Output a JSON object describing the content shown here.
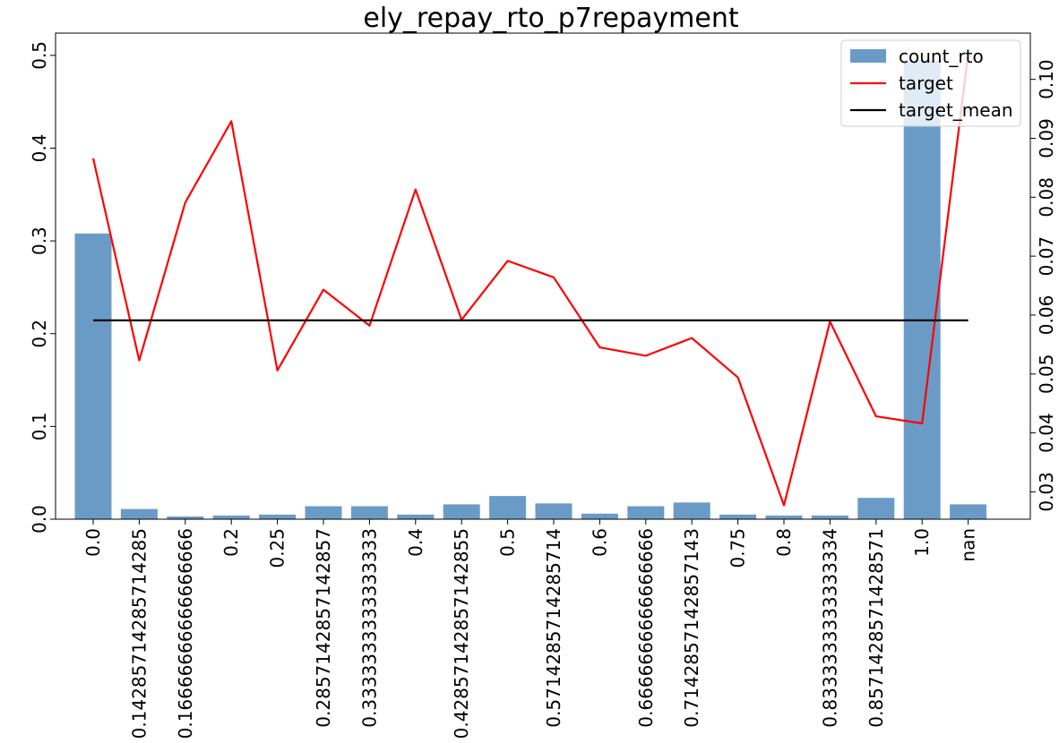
{
  "chart_data": {
    "type": "bar",
    "title": "ely_repay_rto_p7repayment",
    "categories": [
      "0.0",
      "0.14285714285714285",
      "0.16666666666666666",
      "0.2",
      "0.25",
      "0.2857142857142857",
      "0.3333333333333333",
      "0.4",
      "0.42857142857142855",
      "0.5",
      "0.5714285714285714",
      "0.6",
      "0.6666666666666666",
      "0.7142857142857143",
      "0.75",
      "0.8",
      "0.8333333333333334",
      "0.8571428571428571",
      "1.0",
      "nan"
    ],
    "series": [
      {
        "name": "count_rto",
        "type": "bar",
        "axis": "left",
        "color": "#6a9bc6",
        "values": [
          0.308,
          0.011,
          0.003,
          0.004,
          0.005,
          0.014,
          0.014,
          0.005,
          0.016,
          0.025,
          0.017,
          0.006,
          0.014,
          0.018,
          0.005,
          0.004,
          0.004,
          0.023,
          0.495,
          0.016
        ]
      },
      {
        "name": "target",
        "type": "line",
        "axis": "right",
        "color": "#ff0000",
        "values": [
          0.0866,
          0.0523,
          0.0791,
          0.0929,
          0.0506,
          0.0643,
          0.0582,
          0.0813,
          0.0592,
          0.0692,
          0.0664,
          0.0545,
          0.0531,
          0.0561,
          0.0494,
          0.0277,
          0.0589,
          0.0428,
          0.0416,
          0.1043
        ]
      },
      {
        "name": "target_mean",
        "type": "line",
        "axis": "right",
        "color": "#000000",
        "values": [
          0.0591,
          0.0591,
          0.0591,
          0.0591,
          0.0591,
          0.0591,
          0.0591,
          0.0591,
          0.0591,
          0.0591,
          0.0591,
          0.0591,
          0.0591,
          0.0591,
          0.0591,
          0.0591,
          0.0591,
          0.0591,
          0.0591,
          0.0591
        ]
      }
    ],
    "y_left": {
      "ylim": [
        0,
        0.524
      ],
      "ticks": [
        0.0,
        0.1,
        0.2,
        0.3,
        0.4,
        0.5
      ],
      "tick_labels": [
        "0.0",
        "0.1",
        "0.2",
        "0.3",
        "0.4",
        "0.5"
      ]
    },
    "y_right": {
      "ylim": [
        0.02535,
        0.10785
      ],
      "ticks": [
        0.03,
        0.04,
        0.05,
        0.06,
        0.07,
        0.08,
        0.09,
        0.1
      ],
      "tick_labels": [
        "0.03",
        "0.04",
        "0.05",
        "0.06",
        "0.07",
        "0.08",
        "0.09",
        "0.10"
      ]
    },
    "legend": {
      "placement": "top-right",
      "entries": [
        "count_rto",
        "target",
        "target_mean"
      ]
    },
    "grid": false
  }
}
